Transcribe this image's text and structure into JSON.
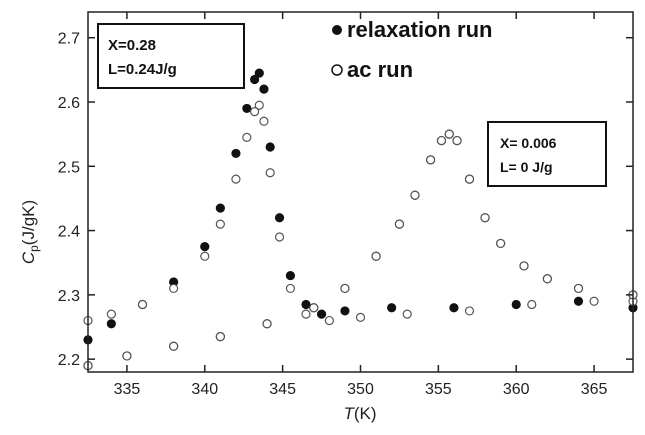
{
  "chart_data": {
    "type": "scatter",
    "xlabel_italic": "T",
    "xlabel_unit": "(K)",
    "ylabel_main": "C",
    "ylabel_sub": "p",
    "ylabel_unit": "(J/gK)",
    "xlim": [
      332.5,
      367.5
    ],
    "ylim": [
      2.18,
      2.74
    ],
    "x_ticks": [
      335,
      340,
      345,
      350,
      355,
      360,
      365
    ],
    "y_ticks": [
      2.2,
      2.3,
      2.4,
      2.5,
      2.6,
      2.7
    ],
    "y_tick_labels": [
      "2.2",
      "2.3",
      "2.4",
      "2.5",
      "2.6",
      "2.7"
    ],
    "legend": {
      "relaxation": "relaxation run",
      "ac": "ac run"
    },
    "annotations": {
      "left_box": [
        "X=0.28",
        "L=0.24J/g"
      ],
      "right_box": [
        "X= 0.006",
        "L= 0 J/g"
      ]
    },
    "series": [
      {
        "name": "relaxation run",
        "sample": "X=0.28",
        "marker": "filled",
        "x": [
          332.5,
          334,
          336,
          338,
          340,
          341,
          342,
          342.7,
          343.2,
          343.5,
          343.8,
          344.2,
          344.8,
          345.5,
          346.5,
          347.5,
          349,
          352,
          356,
          360,
          364,
          367.5
        ],
        "y": [
          2.23,
          2.255,
          2.285,
          2.32,
          2.375,
          2.435,
          2.52,
          2.59,
          2.635,
          2.645,
          2.62,
          2.53,
          2.42,
          2.33,
          2.285,
          2.27,
          2.275,
          2.28,
          2.28,
          2.285,
          2.29,
          2.28
        ]
      },
      {
        "name": "ac run",
        "sample": "X=0.28",
        "marker": "open",
        "x": [
          332.5,
          334,
          336,
          338,
          340,
          341,
          342,
          342.7,
          343.2,
          343.5,
          343.8,
          344.2,
          344.8,
          345.5,
          346.5,
          348,
          350,
          353,
          357,
          361,
          365,
          367.5
        ],
        "y": [
          2.26,
          2.27,
          2.285,
          2.31,
          2.36,
          2.41,
          2.48,
          2.545,
          2.585,
          2.595,
          2.57,
          2.49,
          2.39,
          2.31,
          2.27,
          2.26,
          2.265,
          2.27,
          2.275,
          2.285,
          2.29,
          2.29
        ]
      },
      {
        "name": "relaxation run",
        "sample": "X= 0.006",
        "marker": "filled",
        "x": [
          332.5,
          335,
          338,
          341,
          344,
          347,
          349,
          351,
          352.5,
          353.5,
          354.5,
          355.2,
          355.7,
          356.2,
          357,
          358,
          359,
          360.5,
          362,
          364,
          367.5
        ],
        "y": [
          2.19,
          2.205,
          2.22,
          2.235,
          2.255,
          2.28,
          2.31,
          2.36,
          2.41,
          2.455,
          2.51,
          2.54,
          2.55,
          2.54,
          2.48,
          2.42,
          2.38,
          2.345,
          2.325,
          2.31,
          2.3
        ]
      },
      {
        "name": "ac run",
        "sample": "X= 0.006",
        "marker": "open",
        "x": [
          332.5,
          335,
          338,
          341,
          344,
          347,
          349,
          351,
          352.5,
          353.5,
          354.5,
          355.2,
          355.7,
          356.2,
          357,
          358,
          359,
          360.5,
          362,
          364,
          367.5
        ],
        "y": [
          2.19,
          2.205,
          2.22,
          2.235,
          2.255,
          2.28,
          2.31,
          2.36,
          2.41,
          2.455,
          2.51,
          2.54,
          2.55,
          2.54,
          2.48,
          2.42,
          2.38,
          2.345,
          2.325,
          2.31,
          2.3
        ]
      }
    ],
    "colors": {
      "filled_marker": "#111111",
      "open_marker_fill": "#ffffff",
      "open_marker_stroke": "#555555",
      "axis": "#222222"
    }
  }
}
